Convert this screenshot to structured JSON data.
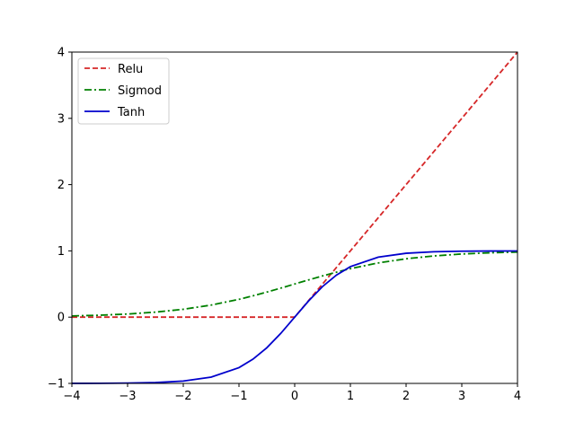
{
  "chart_data": {
    "type": "line",
    "title": "",
    "xlabel": "",
    "ylabel": "",
    "xlim": [
      -4,
      4
    ],
    "ylim": [
      -1,
      4
    ],
    "xticks": [
      -4,
      -3,
      -2,
      -1,
      0,
      1,
      2,
      3,
      4
    ],
    "yticks": [
      -1,
      0,
      1,
      2,
      3,
      4
    ],
    "xtick_labels": [
      "−4",
      "−3",
      "−2",
      "−1",
      "0",
      "1",
      "2",
      "3",
      "4"
    ],
    "ytick_labels": [
      "−1",
      "0",
      "1",
      "2",
      "3",
      "4"
    ],
    "grid": false,
    "legend_position": "top-left",
    "x": [
      -4,
      -3.5,
      -3,
      -2.5,
      -2,
      -1.5,
      -1,
      -0.75,
      -0.5,
      -0.25,
      0,
      0.25,
      0.5,
      0.75,
      1,
      1.5,
      2,
      2.5,
      3,
      3.5,
      4
    ],
    "series": [
      {
        "name": "Relu",
        "color": "#d62728",
        "linestyle": "dashed",
        "values": [
          0,
          0,
          0,
          0,
          0,
          0,
          0,
          0,
          0,
          0,
          0,
          0.25,
          0.5,
          0.75,
          1,
          1.5,
          2,
          2.5,
          3,
          3.5,
          4
        ]
      },
      {
        "name": "Sigmod",
        "color": "#008000",
        "linestyle": "dashdot",
        "values": [
          0.018,
          0.029,
          0.047,
          0.076,
          0.119,
          0.182,
          0.269,
          0.321,
          0.378,
          0.438,
          0.5,
          0.562,
          0.622,
          0.679,
          0.731,
          0.818,
          0.881,
          0.924,
          0.953,
          0.971,
          0.982
        ]
      },
      {
        "name": "Tanh",
        "color": "#0000cc",
        "linestyle": "solid",
        "values": [
          -0.999,
          -0.998,
          -0.995,
          -0.987,
          -0.964,
          -0.905,
          -0.762,
          -0.635,
          -0.462,
          -0.245,
          0,
          0.245,
          0.462,
          0.635,
          0.762,
          0.905,
          0.964,
          0.987,
          0.995,
          0.998,
          0.999
        ]
      }
    ]
  }
}
